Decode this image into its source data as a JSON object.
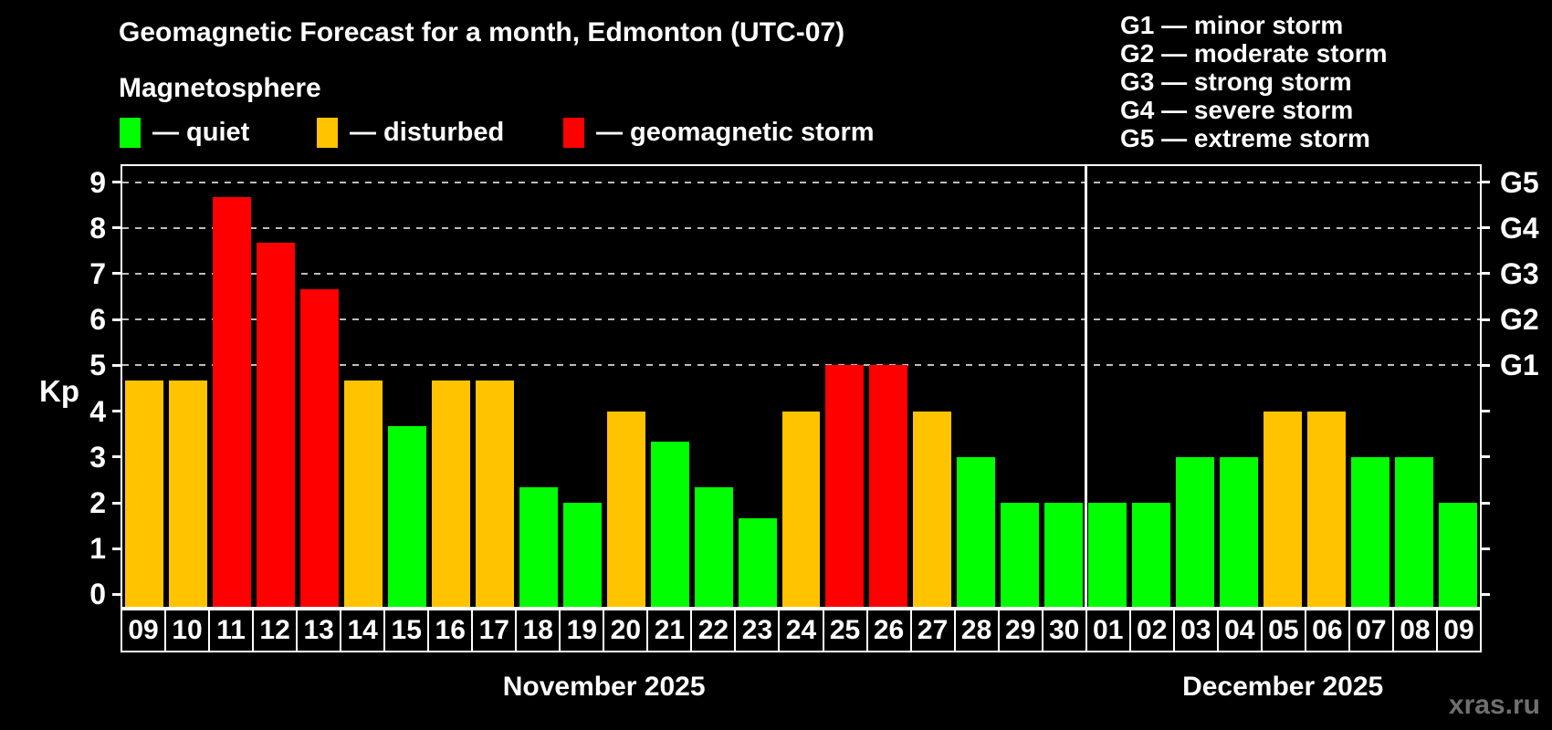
{
  "title": "Geomagnetic Forecast for a month, Edmonton (UTC-07)",
  "subtitle": "Magnetosphere",
  "y_axis_label": "Kp",
  "watermark": "xras.ru",
  "legend": [
    {
      "key": "quiet",
      "label": "— quiet"
    },
    {
      "key": "disturbed",
      "label": "— disturbed"
    },
    {
      "key": "storm",
      "label": "— geomagnetic storm"
    }
  ],
  "storm_scale_legend": [
    "G1 — minor storm",
    "G2 — moderate storm",
    "G3 — strong storm",
    "G4 — severe storm",
    "G5 — extreme storm"
  ],
  "chart_data": {
    "type": "bar",
    "title": "Geomagnetic Forecast for a month, Edmonton (UTC-07)",
    "ylabel": "Kp",
    "ylim": [
      0,
      9
    ],
    "y_ticks": [
      0,
      1,
      2,
      3,
      4,
      5,
      6,
      7,
      8,
      9
    ],
    "grid": "dashed horizontal lines at Kp 5 to 9 (G1 to G5), legend top-left",
    "g_levels": [
      {
        "label": "G1",
        "kp": 5
      },
      {
        "label": "G2",
        "kp": 6
      },
      {
        "label": "G3",
        "kp": 7
      },
      {
        "label": "G4",
        "kp": 8
      },
      {
        "label": "G5",
        "kp": 9
      }
    ],
    "series_colors": {
      "quiet": "#00ff00",
      "disturbed": "#ffc300",
      "storm": "#ff0000",
      "background": "#000000",
      "axis": "#ffffff",
      "grid": "#bdbdbd",
      "watermark": "#6f6f6f"
    },
    "months": [
      {
        "name": "November 2025",
        "days": [
          {
            "day": "09",
            "kp": 4.67,
            "condition": "disturbed"
          },
          {
            "day": "10",
            "kp": 4.67,
            "condition": "disturbed"
          },
          {
            "day": "11",
            "kp": 8.67,
            "condition": "storm"
          },
          {
            "day": "12",
            "kp": 7.67,
            "condition": "storm"
          },
          {
            "day": "13",
            "kp": 6.67,
            "condition": "storm"
          },
          {
            "day": "14",
            "kp": 4.67,
            "condition": "disturbed"
          },
          {
            "day": "15",
            "kp": 3.67,
            "condition": "quiet"
          },
          {
            "day": "16",
            "kp": 4.67,
            "condition": "disturbed"
          },
          {
            "day": "17",
            "kp": 4.67,
            "condition": "disturbed"
          },
          {
            "day": "18",
            "kp": 2.33,
            "condition": "quiet"
          },
          {
            "day": "19",
            "kp": 2.0,
            "condition": "quiet"
          },
          {
            "day": "20",
            "kp": 4.0,
            "condition": "disturbed"
          },
          {
            "day": "21",
            "kp": 3.33,
            "condition": "quiet"
          },
          {
            "day": "22",
            "kp": 2.33,
            "condition": "quiet"
          },
          {
            "day": "23",
            "kp": 1.67,
            "condition": "quiet"
          },
          {
            "day": "24",
            "kp": 4.0,
            "condition": "disturbed"
          },
          {
            "day": "25",
            "kp": 5.0,
            "condition": "storm"
          },
          {
            "day": "26",
            "kp": 5.0,
            "condition": "storm"
          },
          {
            "day": "27",
            "kp": 4.0,
            "condition": "disturbed"
          },
          {
            "day": "28",
            "kp": 3.0,
            "condition": "quiet"
          },
          {
            "day": "29",
            "kp": 2.0,
            "condition": "quiet"
          },
          {
            "day": "30",
            "kp": 2.0,
            "condition": "quiet"
          }
        ]
      },
      {
        "name": "December 2025",
        "days": [
          {
            "day": "01",
            "kp": 2.0,
            "condition": "quiet"
          },
          {
            "day": "02",
            "kp": 2.0,
            "condition": "quiet"
          },
          {
            "day": "03",
            "kp": 3.0,
            "condition": "quiet"
          },
          {
            "day": "04",
            "kp": 3.0,
            "condition": "quiet"
          },
          {
            "day": "05",
            "kp": 4.0,
            "condition": "disturbed"
          },
          {
            "day": "06",
            "kp": 4.0,
            "condition": "disturbed"
          },
          {
            "day": "07",
            "kp": 3.0,
            "condition": "quiet"
          },
          {
            "day": "08",
            "kp": 3.0,
            "condition": "quiet"
          },
          {
            "day": "09",
            "kp": 2.0,
            "condition": "quiet"
          }
        ]
      }
    ]
  }
}
